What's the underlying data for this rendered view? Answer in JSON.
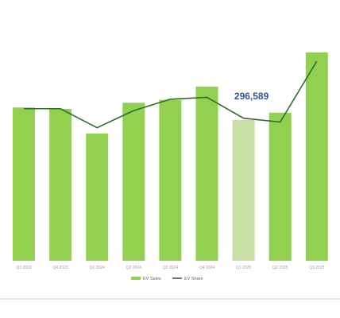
{
  "chart_data": {
    "type": "bar",
    "categories": [
      "Q3 2023",
      "Q4 2023",
      "Q1 2024",
      "Q2 2024",
      "Q3 2024",
      "Q4 2024",
      "Q1 2025",
      "Q2 2025",
      "Q3 2025"
    ],
    "series": [
      {
        "name": "EV Sales",
        "type": "bar",
        "color": "#92d050",
        "colors": [
          "#92d050",
          "#92d050",
          "#92d050",
          "#92d050",
          "#92d050",
          "#92d050",
          "#c8e0a6",
          "#92d050",
          "#92d050"
        ],
        "values": [
          323000,
          320000,
          268000,
          333000,
          339000,
          367000,
          296589,
          312000,
          439000
        ],
        "value_labels": [
          null,
          null,
          null,
          null,
          null,
          null,
          "296,589",
          null,
          null
        ]
      },
      {
        "name": "EV Share",
        "type": "line",
        "color": "#2e6b2e",
        "values": [
          8.0,
          8.0,
          7.0,
          7.9,
          8.5,
          8.6,
          7.5,
          7.3,
          10.5
        ]
      }
    ]
  }
}
